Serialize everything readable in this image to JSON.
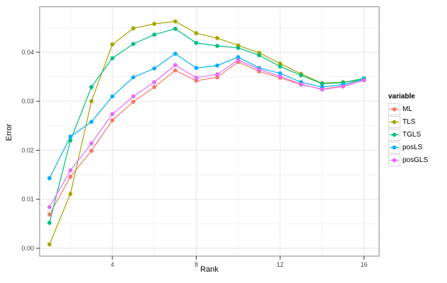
{
  "chart_data": {
    "type": "line",
    "title": "",
    "xlabel": "Rank",
    "ylabel": "Error",
    "legend_title": "variable",
    "legend_position": "right",
    "grid": "major+minor",
    "x": [
      1,
      2,
      3,
      4,
      5,
      6,
      7,
      8,
      9,
      10,
      11,
      12,
      13,
      14,
      15,
      16
    ],
    "x_ticks": [
      4,
      8,
      12,
      16
    ],
    "x_tick_labels": [
      "4",
      "8",
      "12",
      "16"
    ],
    "x_minor_ticks": [
      2,
      6,
      10,
      14
    ],
    "y_ticks": [
      0.0,
      0.01,
      0.02,
      0.03,
      0.04
    ],
    "y_tick_labels": [
      "0.00",
      "0.01",
      "0.02",
      "0.03",
      "0.04"
    ],
    "y_minor_ticks": [
      0.005,
      0.015,
      0.025,
      0.035,
      0.045
    ],
    "xlim": [
      0.53,
      16.72
    ],
    "ylim": [
      -0.0016,
      0.0493
    ],
    "series": [
      {
        "name": "ML",
        "color": "#F8766D",
        "values": [
          0.0069,
          0.0146,
          0.0199,
          0.0261,
          0.0299,
          0.0329,
          0.0363,
          0.0342,
          0.0349,
          0.038,
          0.0361,
          0.0348,
          0.0334,
          0.0325,
          0.0331,
          0.0343
        ]
      },
      {
        "name": "TLS",
        "color": "#A3A500",
        "values": [
          0.0008,
          0.0111,
          0.03,
          0.0416,
          0.0449,
          0.0458,
          0.0463,
          0.0439,
          0.0429,
          0.0414,
          0.0399,
          0.0377,
          0.0356,
          0.0337,
          0.0339,
          0.0344
        ]
      },
      {
        "name": "TGLS",
        "color": "#00BF7D",
        "values": [
          0.0052,
          0.022,
          0.0329,
          0.0388,
          0.0417,
          0.0436,
          0.0448,
          0.0419,
          0.0413,
          0.0409,
          0.0394,
          0.0371,
          0.0353,
          0.0336,
          0.0338,
          0.0347
        ]
      },
      {
        "name": "posLS",
        "color": "#00B0F6",
        "values": [
          0.0143,
          0.0228,
          0.0258,
          0.031,
          0.0349,
          0.0367,
          0.0397,
          0.0368,
          0.0373,
          0.039,
          0.0368,
          0.0357,
          0.0339,
          0.0329,
          0.0334,
          0.0345
        ]
      },
      {
        "name": "posGLS",
        "color": "#E76BF3",
        "values": [
          0.0084,
          0.0159,
          0.0214,
          0.0274,
          0.031,
          0.0339,
          0.0374,
          0.0348,
          0.0355,
          0.0384,
          0.0365,
          0.0351,
          0.0335,
          0.0324,
          0.033,
          0.0343
        ]
      }
    ],
    "style_colors": {
      "panel_background": "#ffffff",
      "panel_border": "#999999",
      "grid_major": "#e4e4e4",
      "grid_minor": "#f2f2f2",
      "tick_mark": "#333333",
      "tick_label": "#444444"
    }
  }
}
